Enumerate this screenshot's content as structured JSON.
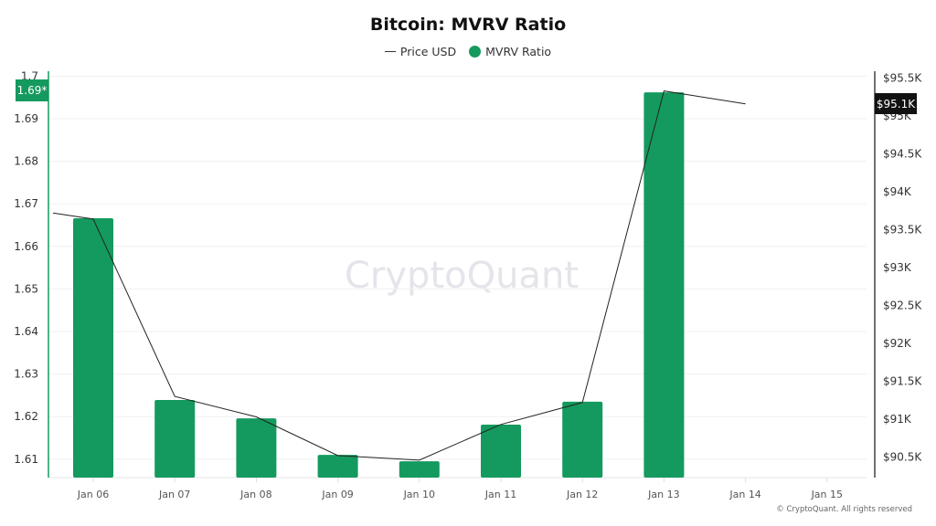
{
  "title": "Bitcoin: MVRV Ratio",
  "legend": [
    {
      "label": "Price USD",
      "marker": "line",
      "color": "#333333"
    },
    {
      "label": "MVRV Ratio",
      "marker": "dot",
      "color": "#149a5e"
    }
  ],
  "watermark": "CryptoQuant",
  "copyright": "© CryptoQuant. All rights reserved",
  "left_axis": {
    "ticks": [
      "1.7",
      "1.69",
      "1.68",
      "1.67",
      "1.66",
      "1.65",
      "1.64",
      "1.63",
      "1.62",
      "1.61"
    ],
    "current_label": "1.69*",
    "current_color": "#149a5e"
  },
  "right_axis": {
    "ticks": [
      "$95.5K",
      "$95K",
      "$94.5K",
      "$94K",
      "$93.5K",
      "$93K",
      "$92.5K",
      "$92K",
      "$91.5K",
      "$91K",
      "$90.5K"
    ],
    "current_label": "$95.1K",
    "current_color": "#111111"
  },
  "colors": {
    "bar": "#149a5e",
    "line": "#222222",
    "axis_left": "#149a5e",
    "axis_right": "#111111",
    "grid": "#f1f1f1"
  },
  "chart_data": {
    "type": "bar+line",
    "title": "Bitcoin: MVRV Ratio",
    "categories": [
      "Jan 06",
      "Jan 07",
      "Jan 08",
      "Jan 09",
      "Jan 10",
      "Jan 11",
      "Jan 12",
      "Jan 13",
      "Jan 14",
      "Jan 15"
    ],
    "series": [
      {
        "name": "MVRV Ratio",
        "type": "bar",
        "axis": "left",
        "values": [
          1.6666,
          1.6239,
          1.6196,
          1.611,
          1.6095,
          1.6181,
          1.6235,
          1.6962,
          null,
          null
        ]
      },
      {
        "name": "Price USD",
        "type": "line",
        "axis": "right",
        "values": [
          93640,
          91300,
          91030,
          90520,
          90460,
          90930,
          91220,
          95330,
          95160,
          null
        ],
        "leading_value": 93720
      }
    ],
    "ylim_left": [
      1.6057,
      1.7
    ],
    "ylim_right": [
      90180,
      95500
    ],
    "ylabel_left": "MVRV Ratio",
    "ylabel_right": "Price USD",
    "grid": true,
    "legend_position": "top"
  }
}
